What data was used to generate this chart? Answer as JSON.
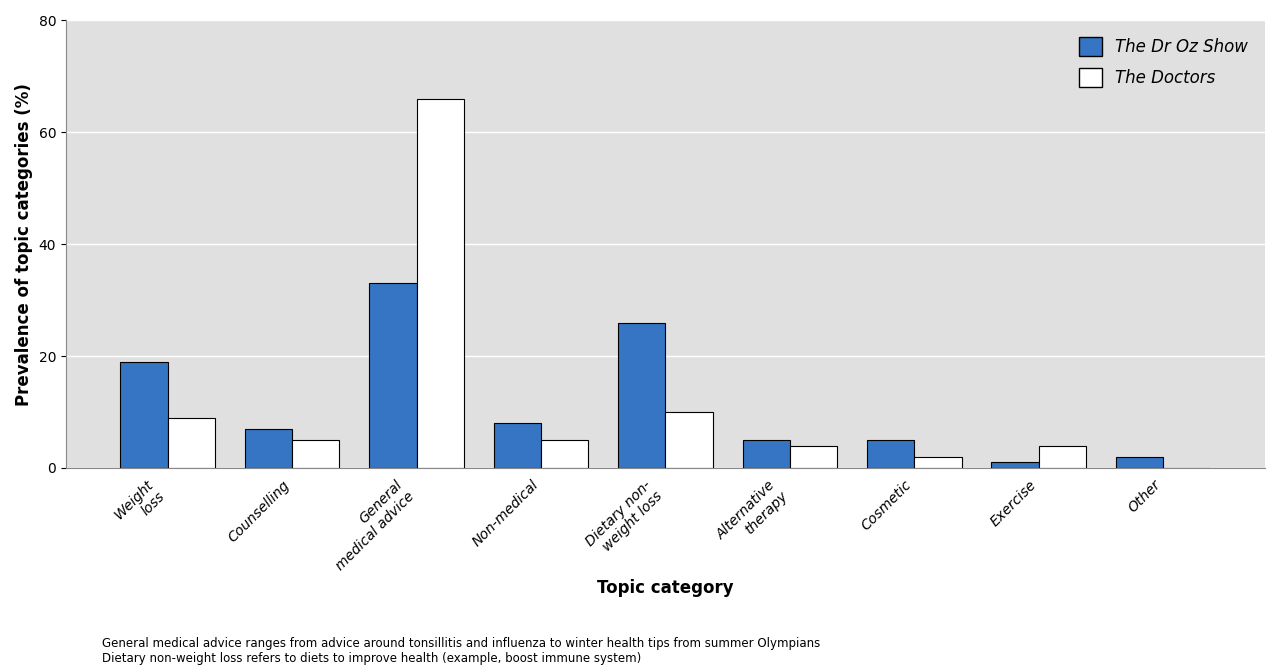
{
  "categories": [
    "Weight\nloss",
    "Counselling",
    "General\nmedical advice",
    "Non-medical",
    "Dietary non-\nweight loss",
    "Alternative\ntherapy",
    "Cosmetic",
    "Exercise",
    "Other"
  ],
  "dr_oz": [
    19,
    7,
    33,
    8,
    26,
    5,
    5,
    1,
    2
  ],
  "doctors": [
    9,
    5,
    66,
    5,
    10,
    4,
    2,
    4,
    0
  ],
  "bar_color_oz": "#3575c3",
  "bar_color_doctors": "#ffffff",
  "bar_edge_color": "#000000",
  "plot_bg_color": "#e0e0e0",
  "fig_bg_color": "#ffffff",
  "ylabel": "Prevalence of topic categories (%)",
  "xlabel": "Topic category",
  "ylim": [
    0,
    80
  ],
  "yticks": [
    0,
    20,
    40,
    60,
    80
  ],
  "legend_oz": "The Dr Oz Show",
  "legend_doctors": "The Doctors",
  "footnote_line1": "General medical advice ranges from advice around tonsillitis and influenza to winter health tips from summer Olympians",
  "footnote_line2": "Dietary non-weight loss refers to diets to improve health (example, boost immune system)",
  "bar_width": 0.38,
  "tick_fontsize": 10,
  "label_fontsize": 12,
  "legend_fontsize": 12
}
